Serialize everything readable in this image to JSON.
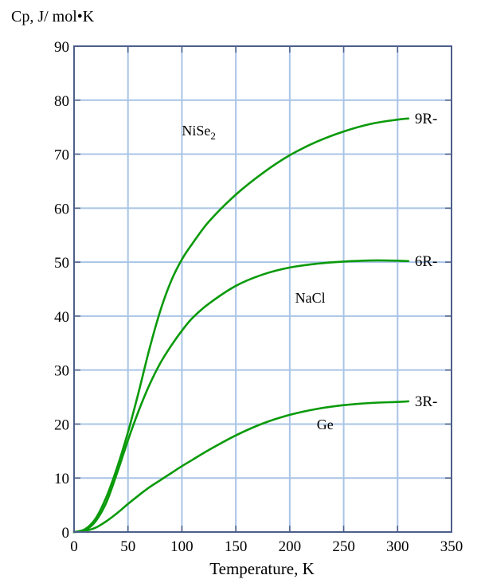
{
  "chart_data": {
    "type": "line",
    "title": "",
    "ylabel": "Cp, J/ mol•K",
    "xlabel": "Temperature, K",
    "xlim": [
      0,
      350
    ],
    "ylim": [
      0,
      90
    ],
    "x_ticks": [
      0,
      50,
      100,
      150,
      200,
      250,
      300,
      350
    ],
    "y_ticks": [
      0,
      10,
      20,
      30,
      40,
      50,
      60,
      70,
      80,
      90
    ],
    "grid": true,
    "colors": {
      "line": "#0a9a0a",
      "grid": "#a9c4e6",
      "axis": "#4d5f8a"
    },
    "series": [
      {
        "name": "NiSe2",
        "label_main": "NiSe",
        "label_sub": "2",
        "end_label": "9R-",
        "x": [
          0,
          10,
          20,
          30,
          40,
          50,
          60,
          70,
          80,
          90,
          100,
          110,
          125,
          150,
          175,
          200,
          225,
          250,
          275,
          300,
          310
        ],
        "y": [
          0,
          0.5,
          2.5,
          6.5,
          12,
          18.5,
          26,
          34,
          41,
          46.5,
          50.5,
          53.5,
          57.5,
          62.5,
          66.5,
          69.8,
          72.3,
          74.2,
          75.6,
          76.4,
          76.6
        ]
      },
      {
        "name": "NaCl",
        "label_main": "NaCl",
        "label_sub": "",
        "end_label": "6R-",
        "x": [
          0,
          10,
          20,
          30,
          40,
          50,
          60,
          70,
          80,
          90,
          100,
          110,
          125,
          150,
          175,
          200,
          225,
          250,
          275,
          290,
          310
        ],
        "y": [
          0,
          0.3,
          2,
          5.5,
          11,
          17,
          22.5,
          27.3,
          31.3,
          34.5,
          37.3,
          39.7,
          42.3,
          45.6,
          47.7,
          49,
          49.7,
          50.1,
          50.3,
          50.3,
          50.2
        ]
      },
      {
        "name": "Ge",
        "label_main": "Ge",
        "label_sub": "",
        "end_label": "3R-",
        "x": [
          0,
          10,
          20,
          30,
          40,
          50,
          60,
          70,
          80,
          90,
          100,
          110,
          125,
          150,
          175,
          200,
          225,
          250,
          275,
          300,
          310
        ],
        "y": [
          0,
          0.2,
          0.8,
          2,
          3.5,
          5.2,
          6.8,
          8.3,
          9.6,
          10.9,
          12.2,
          13.4,
          15.2,
          17.9,
          20.1,
          21.7,
          22.8,
          23.5,
          23.9,
          24.1,
          24.2
        ]
      }
    ]
  }
}
